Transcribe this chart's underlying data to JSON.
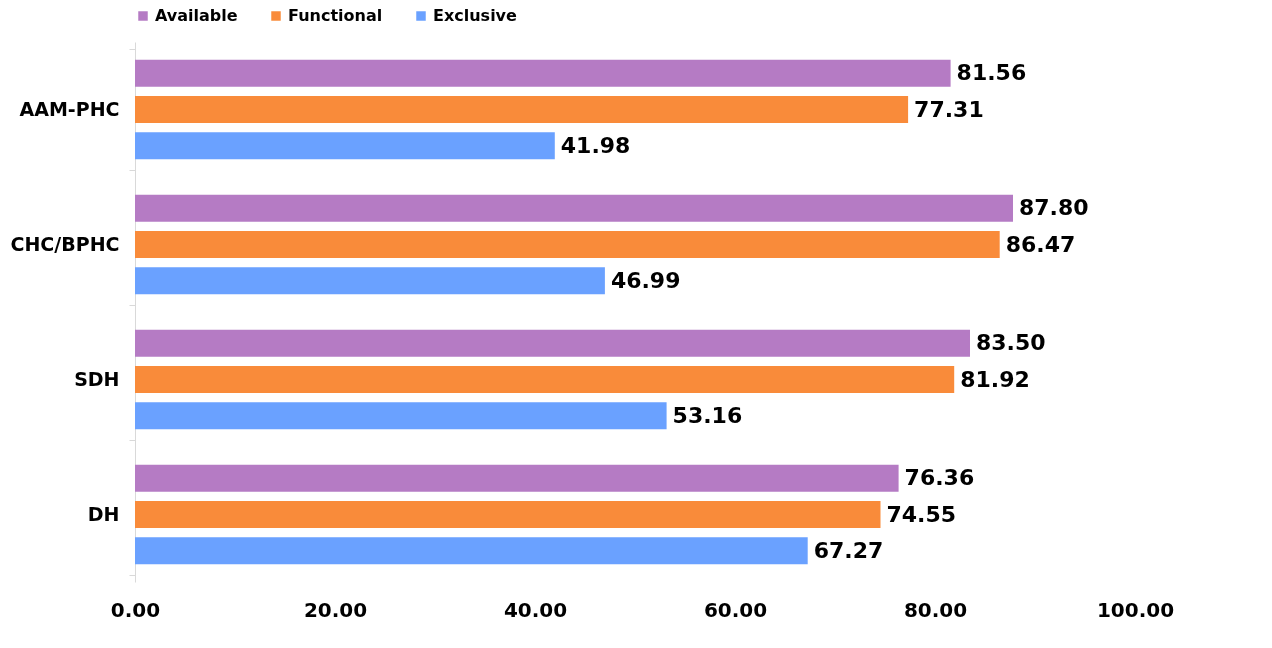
{
  "chart_data": {
    "type": "bar",
    "orientation": "horizontal",
    "categories": [
      "AAM-PHC",
      "CHC/BPHC",
      "SDH",
      "DH"
    ],
    "series": [
      {
        "name": "Available",
        "color": "#b57bc4",
        "values": [
          81.56,
          87.8,
          83.5,
          76.36
        ],
        "value_labels": [
          "81.56",
          "87.80",
          "83.50",
          "76.36"
        ]
      },
      {
        "name": "Functional",
        "color": "#f98b3a",
        "values": [
          77.31,
          86.47,
          81.92,
          74.55
        ],
        "value_labels": [
          "77.31",
          "86.47",
          "81.92",
          "74.55"
        ]
      },
      {
        "name": "Exclusive",
        "color": "#6aa1ff",
        "values": [
          41.98,
          46.99,
          53.16,
          67.27
        ],
        "value_labels": [
          "41.98",
          "46.99",
          "53.16",
          "67.27"
        ]
      }
    ],
    "xlim": [
      0,
      100
    ],
    "xticks": [
      {
        "value": 0,
        "label": "0.00"
      },
      {
        "value": 20,
        "label": "20.00"
      },
      {
        "value": 40,
        "label": "40.00"
      },
      {
        "value": 60,
        "label": "60.00"
      },
      {
        "value": 80,
        "label": "80.00"
      },
      {
        "value": 100,
        "label": "100.00"
      }
    ],
    "legend": "top",
    "grid": false
  }
}
